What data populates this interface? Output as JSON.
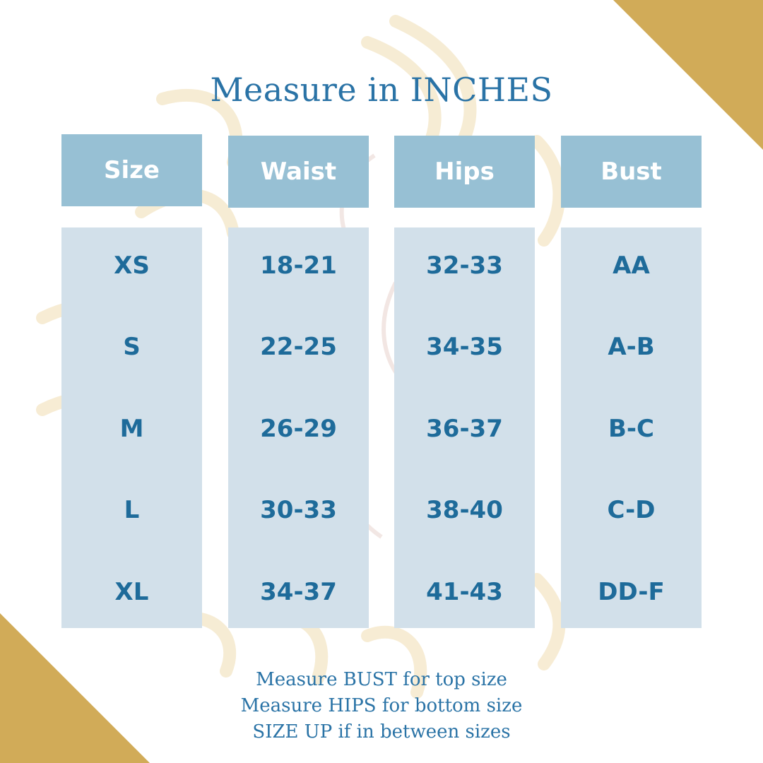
{
  "title": "Measure in INCHES",
  "columns": [
    {
      "header": "Size",
      "values": [
        "XS",
        "S",
        "M",
        "L",
        "XL"
      ]
    },
    {
      "header": "Waist",
      "values": [
        "18-21",
        "22-25",
        "26-29",
        "30-33",
        "34-37"
      ]
    },
    {
      "header": "Hips",
      "values": [
        "32-33",
        "34-35",
        "36-37",
        "38-40",
        "41-43"
      ]
    },
    {
      "header": "Bust",
      "values": [
        "AA",
        "A-B",
        "B-C",
        "C-D",
        "DD-F"
      ]
    }
  ],
  "notes": [
    "Measure BUST for top size",
    "Measure HIPS for bottom size",
    "SIZE UP if in between sizes"
  ],
  "colors": {
    "accent_gold": "#d1ab58",
    "header_blue": "#97c0d4",
    "body_blue": "#d2e0ea",
    "text_blue": "#2a73a6"
  }
}
